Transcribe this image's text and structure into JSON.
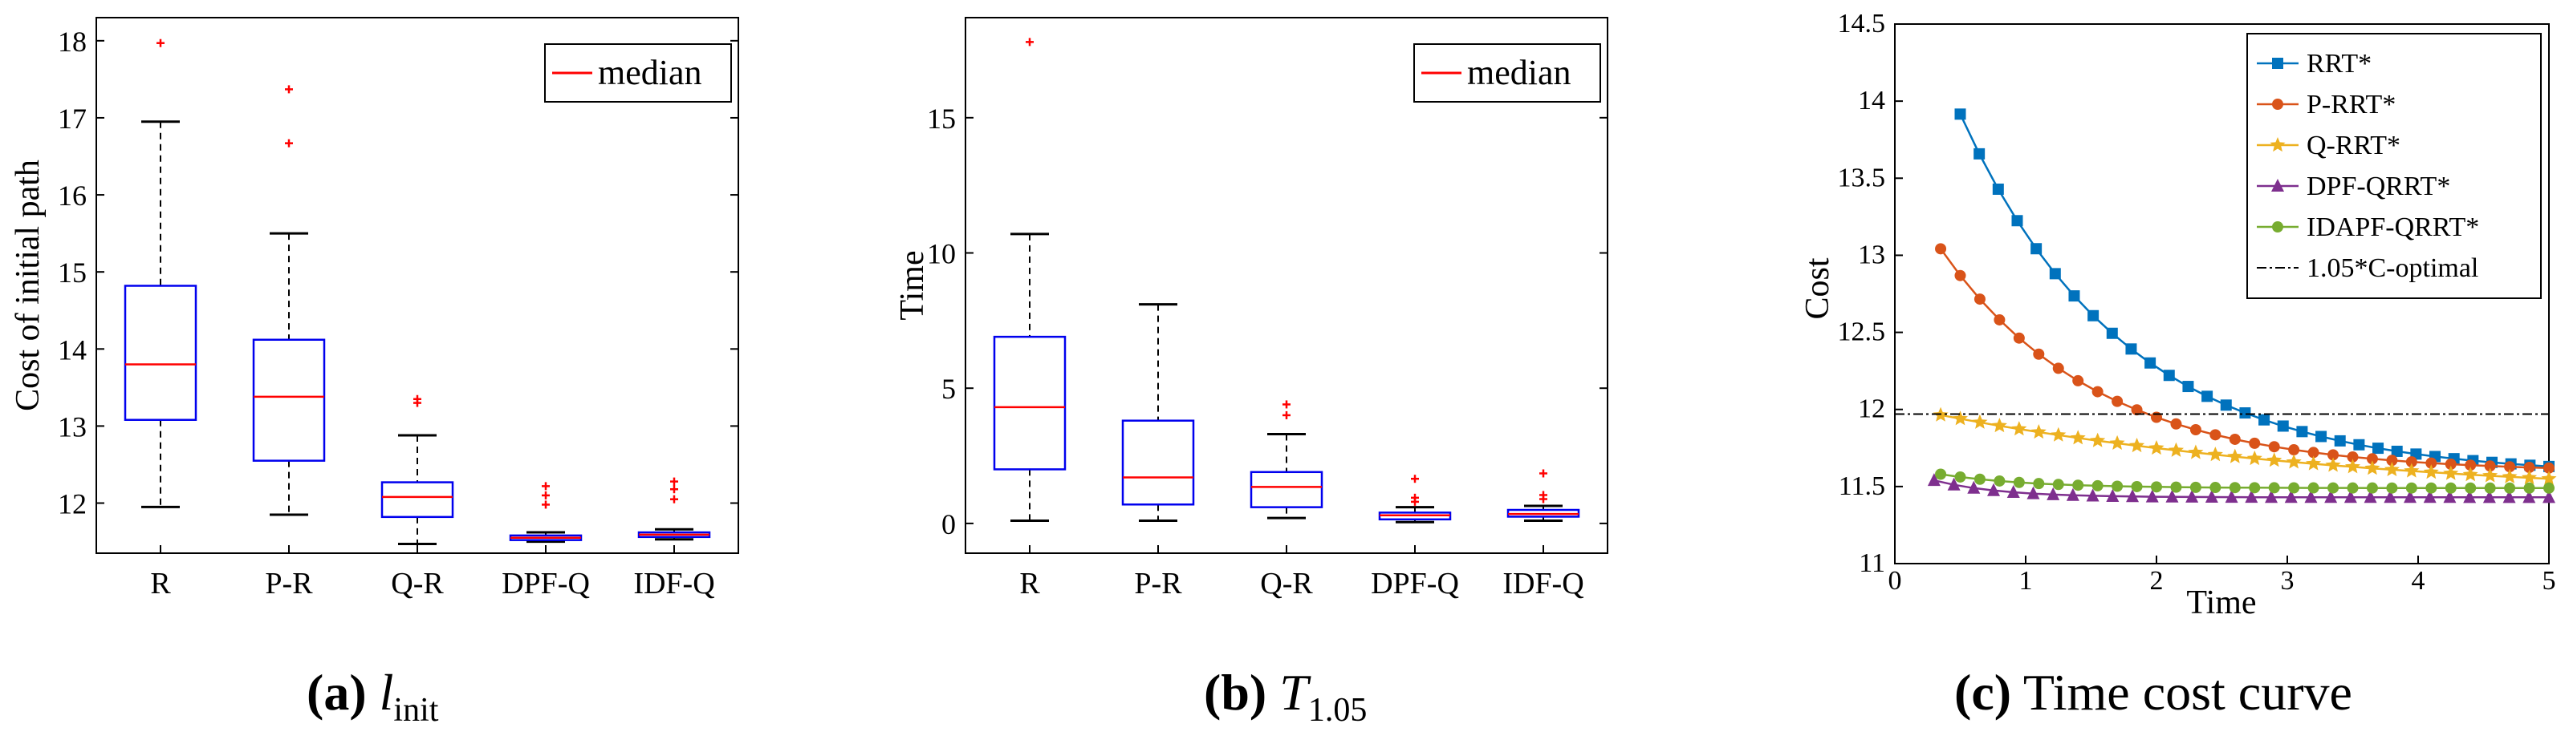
{
  "chart_data": [
    {
      "type": "box",
      "id": "a",
      "categories": [
        "R",
        "P-R",
        "Q-R",
        "DPF-Q",
        "IDF-Q"
      ],
      "ylabel": "Cost of initial path",
      "xlabel": "",
      "ylim": [
        11.35,
        18.3
      ],
      "yticks": [
        12,
        13,
        14,
        15,
        16,
        17,
        18
      ],
      "legend": [
        "median"
      ],
      "legend_position": "top-right",
      "caption": {
        "tag": "(a)",
        "symbol": "l",
        "sub": "init"
      },
      "boxes": [
        {
          "whisker_low": 11.95,
          "q1": 13.08,
          "median": 13.8,
          "q3": 14.82,
          "whisker_high": 16.95,
          "outliers": [
            17.97
          ],
          "color": "#0000ee"
        },
        {
          "whisker_low": 11.85,
          "q1": 12.55,
          "median": 13.38,
          "q3": 14.12,
          "whisker_high": 15.5,
          "outliers": [
            17.37,
            16.67
          ],
          "color": "#0000ee"
        },
        {
          "whisker_low": 11.47,
          "q1": 11.82,
          "median": 12.08,
          "q3": 12.27,
          "whisker_high": 12.88,
          "outliers": [
            13.35,
            13.3
          ],
          "color": "#0000ee"
        },
        {
          "whisker_low": 11.5,
          "q1": 11.52,
          "median": 11.55,
          "q3": 11.58,
          "whisker_high": 11.62,
          "outliers": [
            12.22,
            12.1,
            11.98
          ],
          "color": "#0000ee"
        },
        {
          "whisker_low": 11.53,
          "q1": 11.56,
          "median": 11.59,
          "q3": 11.62,
          "whisker_high": 11.66,
          "outliers": [
            12.28,
            12.18,
            12.05
          ],
          "color": "#0000ee"
        }
      ]
    },
    {
      "type": "box",
      "id": "b",
      "categories": [
        "R",
        "P-R",
        "Q-R",
        "DPF-Q",
        "IDF-Q"
      ],
      "ylabel": "Time",
      "xlabel": "",
      "ylim": [
        -1.1,
        18.7
      ],
      "yticks": [
        0,
        5,
        10,
        15
      ],
      "legend": [
        "median"
      ],
      "legend_position": "top-right",
      "caption": {
        "tag": "(b)",
        "symbol": "T",
        "sub": "1.05"
      },
      "boxes": [
        {
          "whisker_low": 0.1,
          "q1": 2.0,
          "median": 4.3,
          "q3": 6.9,
          "whisker_high": 10.7,
          "outliers": [
            17.8
          ],
          "color": "#0000ee"
        },
        {
          "whisker_low": 0.1,
          "q1": 0.7,
          "median": 1.7,
          "q3": 3.8,
          "whisker_high": 8.1,
          "outliers": [],
          "color": "#0000ee"
        },
        {
          "whisker_low": 0.2,
          "q1": 0.6,
          "median": 1.35,
          "q3": 1.9,
          "whisker_high": 3.3,
          "outliers": [
            4.4,
            4.0
          ],
          "color": "#0000ee"
        },
        {
          "whisker_low": 0.05,
          "q1": 0.15,
          "median": 0.3,
          "q3": 0.4,
          "whisker_high": 0.6,
          "outliers": [
            1.65,
            0.95,
            0.8
          ],
          "color": "#0000ee"
        },
        {
          "whisker_low": 0.1,
          "q1": 0.25,
          "median": 0.35,
          "q3": 0.5,
          "whisker_high": 0.65,
          "outliers": [
            1.85,
            1.05,
            0.9
          ],
          "color": "#0000ee"
        }
      ]
    },
    {
      "type": "line",
      "id": "c",
      "xlabel": "Time",
      "ylabel": "Cost",
      "xlim": [
        0,
        5
      ],
      "ylim": [
        11,
        14.5
      ],
      "xticks": [
        0,
        1,
        2,
        3,
        4,
        5
      ],
      "yticks": [
        11,
        11.5,
        12,
        12.5,
        13,
        13.5,
        14,
        14.5
      ],
      "ytick_labels": [
        "11",
        "11.5",
        "12",
        "12.5",
        "13",
        "13.5",
        "14",
        "14.5"
      ],
      "legend_position": "top-right",
      "caption": {
        "tag": "(c)",
        "text": "Time cost curve"
      },
      "series": [
        {
          "name": "RRT*",
          "color": "#0072bd",
          "marker": "square",
          "x_start": 0.5,
          "x_end": 5.0,
          "n": 32,
          "y_end": 11.63,
          "amplitude": 2.35,
          "rate": 0.8
        },
        {
          "name": "P-RRT*",
          "color": "#d95319",
          "marker": "circle",
          "x_start": 0.35,
          "x_end": 5.0,
          "n": 32,
          "y_end": 11.62,
          "amplitude": 1.45,
          "rate": 0.85
        },
        {
          "name": "Q-RRT*",
          "color": "#edb120",
          "marker": "star",
          "x_start": 0.35,
          "x_end": 5.0,
          "n": 32,
          "y_end": 11.55,
          "amplitude": 0.55,
          "rate": 0.3
        },
        {
          "name": "DPF-QRRT*",
          "color": "#7e2f8e",
          "marker": "triangle",
          "x_start": 0.3,
          "x_end": 5.0,
          "n": 32,
          "y_end": 11.43,
          "amplitude": 0.11,
          "rate": 2.0
        },
        {
          "name": "IDAPF-QRRT*",
          "color": "#77ac30",
          "marker": "circle",
          "x_start": 0.35,
          "x_end": 5.0,
          "n": 32,
          "y_end": 11.49,
          "amplitude": 0.09,
          "rate": 1.5
        },
        {
          "name": "1.05*C-optimal",
          "color": "#000000",
          "marker": "none",
          "dash": "dashdot",
          "constant": 11.97
        }
      ]
    }
  ]
}
